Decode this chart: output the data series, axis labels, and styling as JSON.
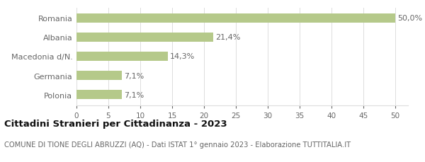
{
  "categories": [
    "Romania",
    "Albania",
    "Macedonia d/N.",
    "Germania",
    "Polonia"
  ],
  "values": [
    50.0,
    21.4,
    14.3,
    7.1,
    7.1
  ],
  "bar_color": "#b5c98a",
  "value_labels": [
    "50,0%",
    "21,4%",
    "14,3%",
    "7,1%",
    "7,1%"
  ],
  "xlim": [
    0,
    52
  ],
  "xticks": [
    0,
    5,
    10,
    15,
    20,
    25,
    30,
    35,
    40,
    45,
    50
  ],
  "title_bold": "Cittadini Stranieri per Cittadinanza - 2023",
  "subtitle": "COMUNE DI TIONE DEGLI ABRUZZI (AQ) - Dati ISTAT 1° gennaio 2023 - Elaborazione TUTTITALIA.IT",
  "title_fontsize": 9.5,
  "subtitle_fontsize": 7.2,
  "label_fontsize": 8,
  "tick_fontsize": 7.5,
  "background_color": "#ffffff",
  "bar_height": 0.5,
  "text_color": "#666666",
  "title_color": "#111111",
  "subtitle_color": "#666666",
  "grid_color": "#dddddd"
}
